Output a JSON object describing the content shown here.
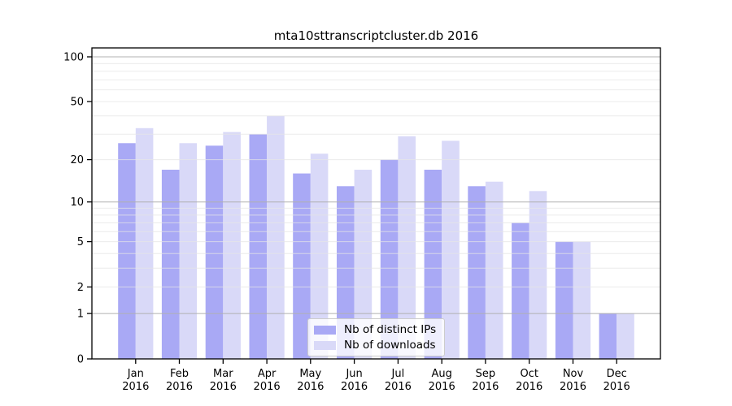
{
  "chart_data": {
    "type": "bar",
    "title": "mta10sttranscriptcluster.db 2016",
    "categories": [
      "Jan 2016",
      "Feb 2016",
      "Mar 2016",
      "Apr 2016",
      "May 2016",
      "Jun 2016",
      "Jul 2016",
      "Aug 2016",
      "Sep 2016",
      "Oct 2016",
      "Nov 2016",
      "Dec 2016"
    ],
    "x_tick_line1": [
      "Jan",
      "Feb",
      "Mar",
      "Apr",
      "May",
      "Jun",
      "Jul",
      "Aug",
      "Sep",
      "Oct",
      "Nov",
      "Dec"
    ],
    "x_tick_line2": [
      "2016",
      "2016",
      "2016",
      "2016",
      "2016",
      "2016",
      "2016",
      "2016",
      "2016",
      "2016",
      "2016",
      "2016"
    ],
    "series": [
      {
        "name": "Nb of distinct IPs",
        "color": "#a9a9f5",
        "values": [
          26,
          17,
          25,
          30,
          16,
          13,
          20,
          17,
          13,
          7,
          5,
          1
        ]
      },
      {
        "name": "Nb of downloads",
        "color": "#d9d9f8",
        "values": [
          33,
          26,
          31,
          40,
          22,
          17,
          29,
          27,
          14,
          12,
          5,
          1
        ]
      }
    ],
    "y_scale": "log1p",
    "y_ticks": [
      0,
      1,
      2,
      5,
      10,
      20,
      50,
      100
    ],
    "major_gridlines": [
      1,
      10,
      100
    ],
    "minor_gridlines": [
      2,
      3,
      4,
      5,
      6,
      7,
      8,
      9,
      20,
      30,
      40,
      50,
      60,
      70,
      80,
      90
    ],
    "ylim": [
      0,
      115
    ],
    "grid": true,
    "legend_position": "lower center",
    "colors": {
      "axis": "#000000",
      "tick_text": "#000000",
      "major_grid": "#b0b0b0",
      "minor_grid": "#e6e6e6"
    }
  }
}
